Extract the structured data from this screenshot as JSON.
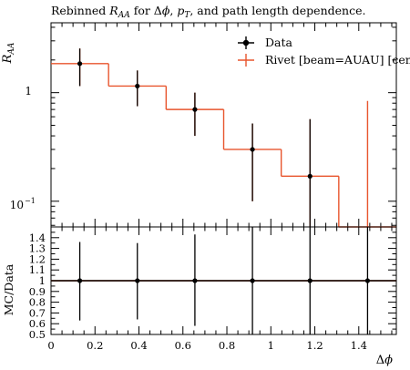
{
  "chart_data": [
    {
      "type": "line",
      "title_prefix": "Rebinned ",
      "title_var": "R",
      "title_sub": "AA",
      "title_mid": " for Δ",
      "title_phi": "ϕ",
      "title_comma": ", ",
      "title_p": "p",
      "title_psub": "T",
      "title_suffix": ", and path length dependence.",
      "ylabel_var": "R",
      "ylabel_sub": "AA",
      "yscale": "log",
      "ylim": [
        0.058,
        4.4
      ],
      "xlim": [
        0,
        1.5708
      ],
      "ytick_labels": [
        "10",
        "−1",
        "1"
      ],
      "ytick_values": [
        0.1,
        1
      ],
      "legend": {
        "position": "top-right",
        "entries": [
          "Data",
          "Rivet [beam=AUAU] [cen"
        ]
      },
      "series": [
        {
          "name": "Data",
          "x": [
            0.1309,
            0.3927,
            0.6545,
            0.9163,
            1.1781,
            1.4399
          ],
          "y": [
            1.85,
            1.15,
            0.7,
            0.3,
            0.17,
            null
          ],
          "yerr_low": [
            0.7,
            0.4,
            0.3,
            0.2,
            0.17,
            null
          ],
          "yerr_high": [
            0.7,
            0.45,
            0.3,
            0.22,
            0.4,
            null
          ],
          "color": "#000000"
        },
        {
          "name": "Rivet [beam=AUAU] [cen",
          "bin_edges": [
            0,
            0.2618,
            0.5236,
            0.7854,
            1.0472,
            1.309,
            1.5708
          ],
          "y": [
            1.85,
            1.15,
            0.7,
            0.3,
            0.17,
            0.04
          ],
          "x": [
            0.1309,
            0.3927,
            0.6545,
            0.9163,
            1.1781,
            1.4399
          ],
          "yerr_low": [
            0.7,
            0.4,
            0.3,
            0.2,
            0.17,
            0.04
          ],
          "yerr_high": [
            0.7,
            0.45,
            0.3,
            0.22,
            0.4,
            0.8
          ],
          "color": "#e8552d"
        }
      ]
    },
    {
      "type": "line",
      "xlabel_delta": "Δ",
      "xlabel_var": "ϕ",
      "ylabel": "MC/Data",
      "xlim": [
        0,
        1.5708
      ],
      "ylim": [
        0.5,
        1.5
      ],
      "xticks": [
        0,
        0.2,
        0.4,
        0.6,
        0.8,
        1,
        1.2,
        1.4
      ],
      "xtick_labels": [
        "0",
        "0.2",
        "0.4",
        "0.6",
        "0.8",
        "1",
        "1.2",
        "1.4"
      ],
      "yticks": [
        0.5,
        0.6,
        0.7,
        0.8,
        0.9,
        1,
        1.1,
        1.2,
        1.3,
        1.4
      ],
      "ytick_labels": [
        "0.5",
        "0.6",
        "0.7",
        "0.8",
        "0.9",
        "1",
        "1.1",
        "1.2",
        "1.3",
        "1.4"
      ],
      "series": [
        {
          "name": "Data",
          "x": [
            0.1309,
            0.3927,
            0.6545,
            0.9163,
            1.1781,
            1.4399
          ],
          "y": [
            1,
            1,
            1,
            1,
            1,
            1
          ],
          "y_low": [
            0.63,
            0.64,
            0.58,
            0.5,
            0.5,
            0.5
          ],
          "y_high": [
            1.36,
            1.35,
            1.43,
            1.5,
            1.5,
            1.5
          ],
          "color": "#000000"
        },
        {
          "name": "Rivet [beam=AUAU] [cen",
          "y_level": 1,
          "color": "#e8552d"
        }
      ]
    }
  ]
}
